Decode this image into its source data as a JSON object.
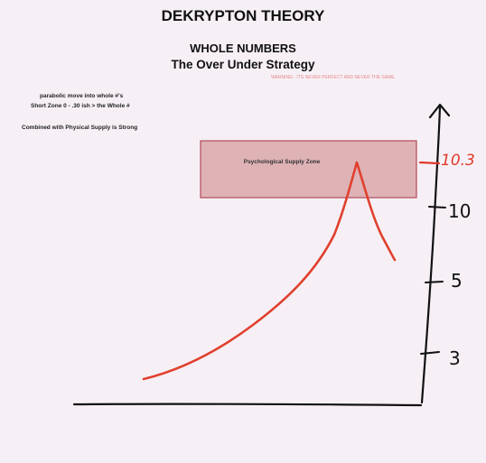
{
  "header": {
    "title": "DEKRYPTON THEORY",
    "subtitle": "WHOLE NUMBERS",
    "strategy": "The Over Under Strategy",
    "warning": "WARNING - ITS NEVER PERFECT AND NEVER THE SAME"
  },
  "notes": {
    "line1": "parabolic move into whole #'s",
    "line2": "Short Zone 0 - .30 ish > the Whole #",
    "line3": "Combined with Physical Supply is Strong"
  },
  "zone": {
    "label": "Psychological Supply Zone",
    "fill": "#d9a3a6",
    "stroke": "#b24a55"
  },
  "axis_ticks": {
    "t103": "10.3",
    "t10": "10",
    "t5": "5",
    "t3": "3"
  },
  "colors": {
    "curve": "#e0402e",
    "axis": "#111111",
    "background": "#f6f0f6"
  }
}
